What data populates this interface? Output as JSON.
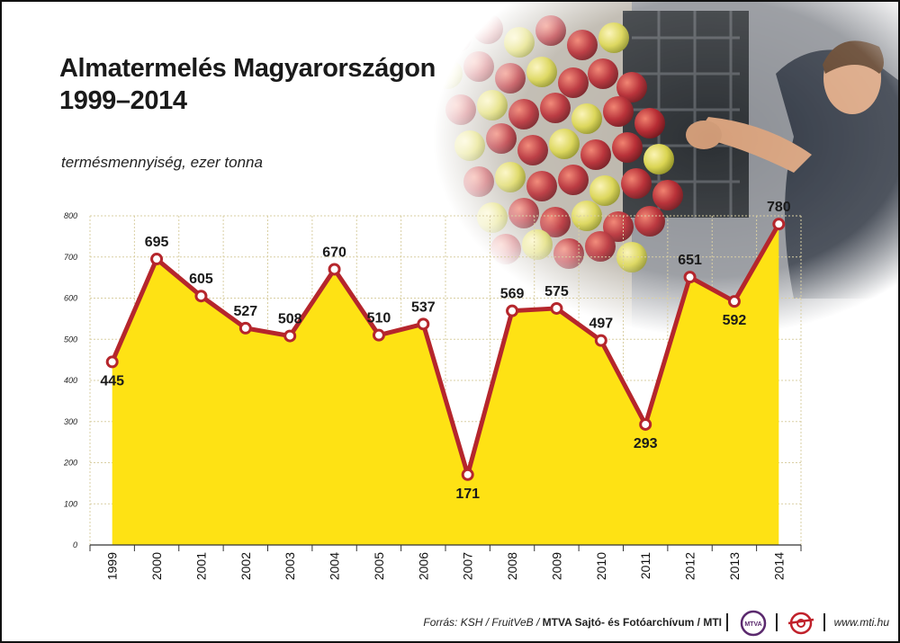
{
  "title_line1": "Almatermelés Magyarországon",
  "title_line2": "1999–2014",
  "unit_label": "termésmennyiség, ezer tonna",
  "footer": {
    "source_prefix": "Forrás: KSH / FruitVeB / ",
    "source_bold": "MTVA Sajtó- és Fotóarchívum / MTI",
    "logo_text": "MTVA",
    "website": "www.mti.hu"
  },
  "colors": {
    "area_fill": "#fee214",
    "line": "#b5262c",
    "marker_fill": "#ffffff",
    "grid": "#d9cfa3"
  },
  "chart_data": {
    "type": "area",
    "title": "Almatermelés Magyarországon 1999–2014",
    "ylabel": "termésmennyiség, ezer tonna",
    "categories": [
      "1999",
      "2000",
      "2001",
      "2002",
      "2003",
      "2004",
      "2005",
      "2006",
      "2007",
      "2008",
      "2009",
      "2010",
      "2011",
      "2012",
      "2013",
      "2014"
    ],
    "values": [
      445,
      695,
      605,
      527,
      508,
      670,
      510,
      537,
      171,
      569,
      575,
      497,
      293,
      651,
      592,
      780
    ],
    "label_position": [
      "below",
      "above",
      "above",
      "above",
      "above",
      "above",
      "above",
      "above",
      "below",
      "above",
      "above",
      "above",
      "below",
      "above",
      "below",
      "above"
    ],
    "ylim": [
      0,
      800
    ],
    "yticks": [
      "0",
      "100",
      "200",
      "300",
      "400",
      "500",
      "600",
      "700",
      "800"
    ],
    "grid": true
  }
}
